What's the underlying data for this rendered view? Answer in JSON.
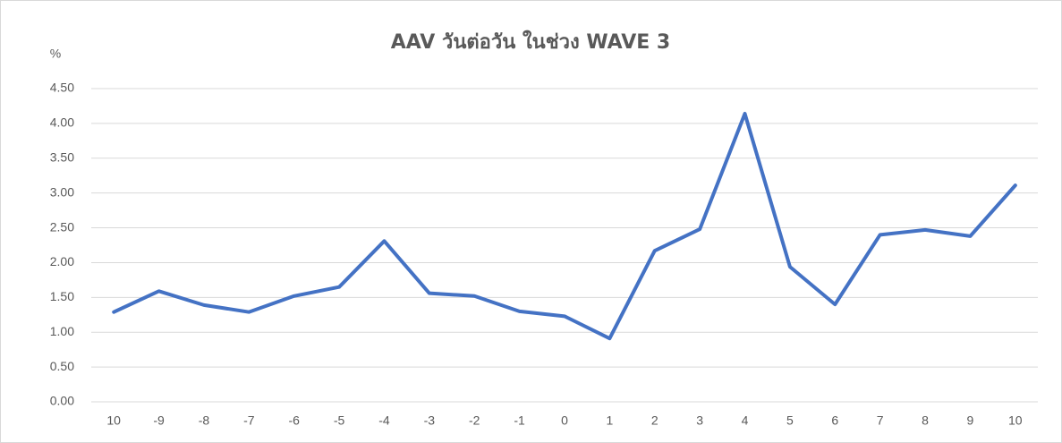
{
  "chart_data": {
    "type": "line",
    "title": "AAV วันต่อวัน ในช่วง WAVE 3",
    "y_label": "%",
    "categories": [
      "10",
      "-9",
      "-8",
      "-7",
      "-6",
      "-5",
      "-4",
      "-3",
      "-2",
      "-1",
      "0",
      "1",
      "2",
      "3",
      "4",
      "5",
      "6",
      "7",
      "8",
      "9",
      "10"
    ],
    "series": [
      {
        "name": "AAV",
        "color": "#4472c4",
        "values": [
          1.29,
          1.59,
          1.39,
          1.29,
          1.52,
          1.65,
          2.31,
          1.56,
          1.52,
          1.3,
          1.23,
          0.91,
          2.17,
          2.48,
          4.14,
          1.94,
          1.4,
          2.4,
          2.47,
          2.38,
          3.11
        ]
      }
    ],
    "ylim": [
      0,
      4.5
    ],
    "yticks": [
      {
        "value": 0,
        "label": "0.00"
      },
      {
        "value": 0.5,
        "label": "0.50"
      },
      {
        "value": 1,
        "label": "1.00"
      },
      {
        "value": 1.5,
        "label": "1.50"
      },
      {
        "value": 2,
        "label": "2.00"
      },
      {
        "value": 2.5,
        "label": "2.50"
      },
      {
        "value": 3,
        "label": "3.00"
      },
      {
        "value": 3.5,
        "label": "3.50"
      },
      {
        "value": 4,
        "label": "4.00"
      },
      {
        "value": 4.5,
        "label": "4.50"
      }
    ],
    "grid": true
  }
}
